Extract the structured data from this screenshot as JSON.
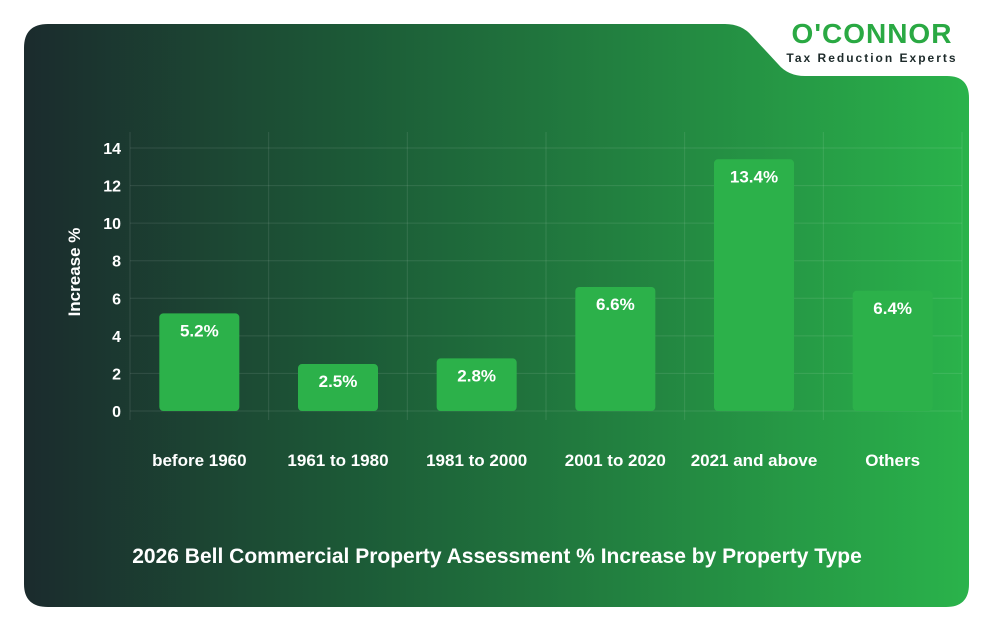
{
  "logo": {
    "title": "O'CONNOR",
    "subtitle": "Tax Reduction Experts"
  },
  "colors": {
    "bg_dark": "#1a2f2a",
    "bg_light": "#2bb14b",
    "bar": "#2cb14a",
    "logo_green": "#2aa943",
    "text": "#ffffff"
  },
  "chart_data": {
    "type": "bar",
    "title": "2026 Bell Commercial Property Assessment % Increase by Property Type",
    "xlabel": "",
    "ylabel": "Increase %",
    "ylim": [
      0,
      14
    ],
    "yticks": [
      0,
      2,
      4,
      6,
      8,
      10,
      12,
      14
    ],
    "grid": true,
    "categories": [
      "before 1960",
      "1961 to 1980",
      "1981 to 2000",
      "2001 to 2020",
      "2021 and above",
      "Others"
    ],
    "values": [
      5.2,
      2.5,
      2.8,
      6.6,
      13.4,
      6.4
    ],
    "data_labels": [
      "5.2%",
      "2.5%",
      "2.8%",
      "6.6%",
      "13.4%",
      "6.4%"
    ]
  }
}
